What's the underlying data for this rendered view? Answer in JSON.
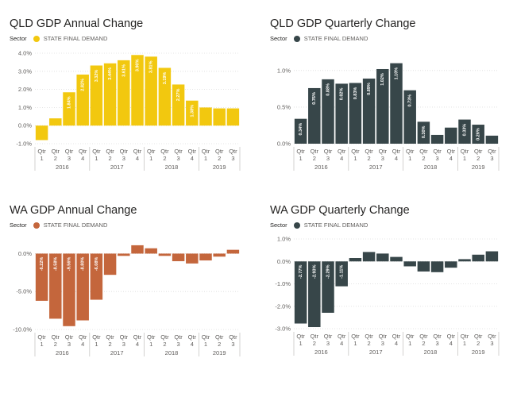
{
  "page": {
    "background": "#ffffff"
  },
  "chart_data": [
    {
      "id": "qld-annual",
      "type": "bar",
      "title": "QLD GDP Annual Change",
      "legend_label": "Sector",
      "color": "#f2c80f",
      "series": [
        {
          "name": "STATE FINAL DEMAND",
          "values": [
            -0.8,
            0.4,
            1.84,
            2.82,
            3.32,
            3.44,
            3.61,
            3.9,
            3.81,
            3.19,
            2.27,
            1.38,
            1.0,
            0.95,
            0.95
          ]
        }
      ],
      "data_labels": [
        "",
        "",
        "1.84%",
        "2.82%",
        "3.32%",
        "3.44%",
        "3.61%",
        "3.90%",
        "3.81%",
        "3.19%",
        "2.27%",
        "1.38%",
        "",
        "",
        ""
      ],
      "ylim": [
        -1.0,
        4.0
      ],
      "yticks": [
        -1,
        0,
        1,
        2,
        3,
        4
      ],
      "ytick_labels": [
        "-1.0%",
        "0.0%",
        "1.0%",
        "2.0%",
        "3.0%",
        "4.0%"
      ],
      "categories": [
        "Qtr 1",
        "Qtr 2",
        "Qtr 3",
        "Qtr 4",
        "Qtr 1",
        "Qtr 2",
        "Qtr 3",
        "Qtr 4",
        "Qtr 1",
        "Qtr 2",
        "Qtr 3",
        "Qtr 4",
        "Qtr 1",
        "Qtr 2",
        "Qtr 3"
      ],
      "quarter_word": "Qtr",
      "quarter_numbers": [
        "1",
        "2",
        "3",
        "4",
        "1",
        "2",
        "3",
        "4",
        "1",
        "2",
        "3",
        "4",
        "1",
        "2",
        "3"
      ],
      "years": [
        "2016",
        "2017",
        "2018",
        "2019"
      ],
      "grid": true
    },
    {
      "id": "qld-quarterly",
      "type": "bar",
      "title": "QLD GDP Quarterly Change",
      "legend_label": "Sector",
      "color": "#374649",
      "series": [
        {
          "name": "STATE FINAL DEMAND",
          "values": [
            0.34,
            0.76,
            0.88,
            0.82,
            0.83,
            0.89,
            1.02,
            1.1,
            0.73,
            0.3,
            0.12,
            0.22,
            0.33,
            0.26,
            0.11
          ]
        }
      ],
      "data_labels": [
        "0.34%",
        "0.76%",
        "0.88%",
        "0.82%",
        "0.83%",
        "0.89%",
        "1.02%",
        "1.10%",
        "0.73%",
        "0.30%",
        "",
        "",
        "0.33%",
        "0.26%",
        ""
      ],
      "ylim": [
        0.0,
        1.15
      ],
      "yticks": [
        0,
        0.5,
        1
      ],
      "ytick_labels": [
        "0.0%",
        "0.5%",
        "1.0%"
      ],
      "categories": [
        "Qtr 1",
        "Qtr 2",
        "Qtr 3",
        "Qtr 4",
        "Qtr 1",
        "Qtr 2",
        "Qtr 3",
        "Qtr 4",
        "Qtr 1",
        "Qtr 2",
        "Qtr 3",
        "Qtr 4",
        "Qtr 1",
        "Qtr 2",
        "Qtr 3"
      ],
      "quarter_word": "Qtr",
      "quarter_numbers": [
        "1",
        "2",
        "3",
        "4",
        "1",
        "2",
        "3",
        "4",
        "1",
        "2",
        "3",
        "4",
        "1",
        "2",
        "3"
      ],
      "years": [
        "2016",
        "2017",
        "2018",
        "2019"
      ],
      "grid": true
    },
    {
      "id": "wa-annual",
      "type": "bar",
      "title": "WA GDP Annual Change",
      "legend_label": "Sector",
      "color": "#c4663c",
      "series": [
        {
          "name": "STATE FINAL DEMAND",
          "values": [
            -6.22,
            -8.58,
            -9.56,
            -8.8,
            -6.08,
            -2.8,
            -0.3,
            1.1,
            0.7,
            -0.3,
            -1.0,
            -1.3,
            -0.9,
            -0.4,
            0.5
          ]
        }
      ],
      "data_labels": [
        "-6.22%",
        "-8.58%",
        "-9.56%",
        "-8.80%",
        "-6.08%",
        "",
        "",
        "",
        "",
        "",
        "",
        "",
        "",
        "",
        ""
      ],
      "ylim": [
        -10.0,
        1.3
      ],
      "yticks": [
        -10,
        -5,
        0
      ],
      "ytick_labels": [
        "-10.0%",
        "-5.0%",
        "0.0%"
      ],
      "categories": [
        "Qtr 1",
        "Qtr 2",
        "Qtr 3",
        "Qtr 4",
        "Qtr 1",
        "Qtr 2",
        "Qtr 3",
        "Qtr 4",
        "Qtr 1",
        "Qtr 2",
        "Qtr 3",
        "Qtr 4",
        "Qtr 1",
        "Qtr 2",
        "Qtr 3"
      ],
      "quarter_word": "Qtr",
      "quarter_numbers": [
        "1",
        "2",
        "3",
        "4",
        "1",
        "2",
        "3",
        "4",
        "1",
        "2",
        "3",
        "4",
        "1",
        "2",
        "3"
      ],
      "years": [
        "2016",
        "2017",
        "2018",
        "2019"
      ],
      "grid": true
    },
    {
      "id": "wa-quarterly",
      "type": "bar",
      "title": "WA GDP Quarterly Change",
      "legend_label": "Sector",
      "color": "#374649",
      "series": [
        {
          "name": "STATE FINAL DEMAND",
          "values": [
            -2.77,
            -2.93,
            -2.29,
            -1.11,
            0.15,
            0.42,
            0.35,
            0.2,
            -0.22,
            -0.45,
            -0.48,
            -0.28,
            0.1,
            0.3,
            0.45
          ]
        }
      ],
      "data_labels": [
        "-2.77%",
        "-2.93%",
        "-2.29%",
        "-1.11%",
        "",
        "",
        "",
        "",
        "",
        "",
        "",
        "",
        "",
        "",
        ""
      ],
      "ylim": [
        -3.0,
        1.0
      ],
      "yticks": [
        -3,
        -2,
        -1,
        0,
        1
      ],
      "ytick_labels": [
        "-3.0%",
        "-2.0%",
        "-1.0%",
        "0.0%",
        "1.0%"
      ],
      "categories": [
        "Qtr 1",
        "Qtr 2",
        "Qtr 3",
        "Qtr 4",
        "Qtr 1",
        "Qtr 2",
        "Qtr 3",
        "Qtr 4",
        "Qtr 1",
        "Qtr 2",
        "Qtr 3",
        "Qtr 4",
        "Qtr 1",
        "Qtr 2",
        "Qtr 3"
      ],
      "quarter_word": "Qtr",
      "quarter_numbers": [
        "1",
        "2",
        "3",
        "4",
        "1",
        "2",
        "3",
        "4",
        "1",
        "2",
        "3",
        "4",
        "1",
        "2",
        "3"
      ],
      "years": [
        "2016",
        "2017",
        "2018",
        "2019"
      ],
      "grid": true
    }
  ]
}
